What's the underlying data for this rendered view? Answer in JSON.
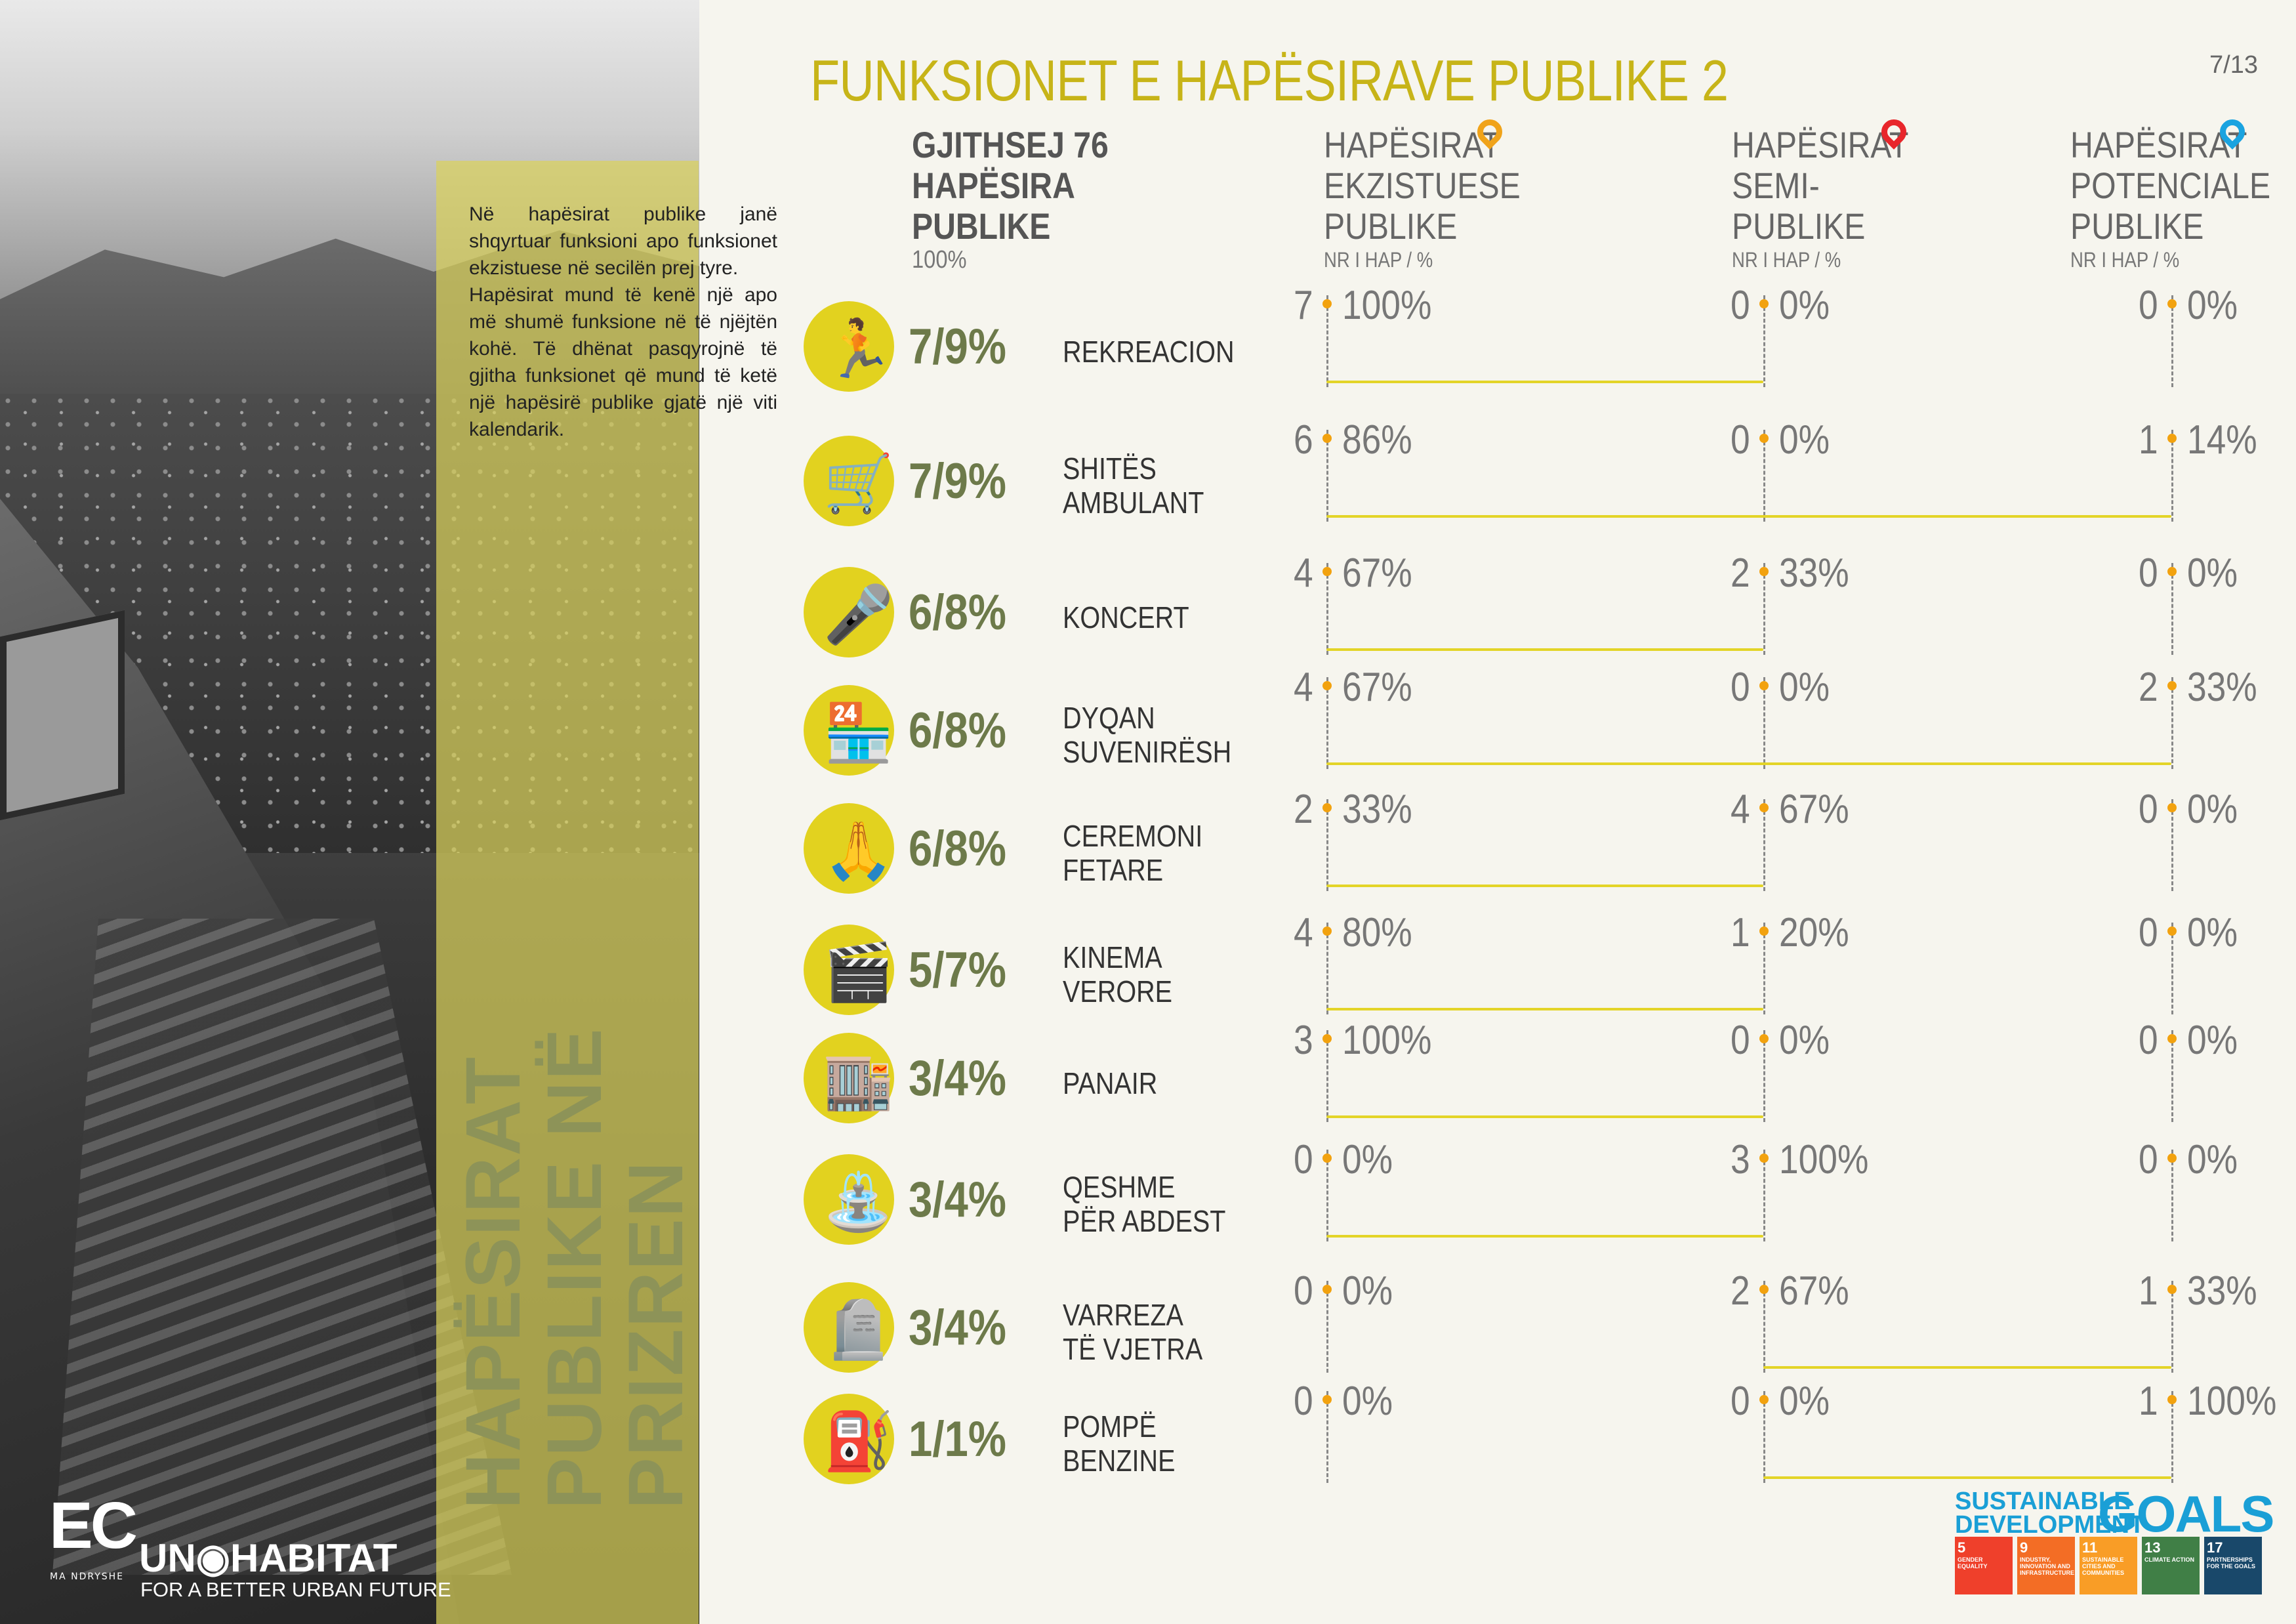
{
  "title": "FUNKSIONET E HAPËSIRAVE PUBLIKE 2",
  "page": "7/13",
  "intro": [
    "Në hapësirat publike janë shqyrtuar funksioni apo funksionet ekzistuese në secilën prej tyre.",
    "Hapësirat mund të kenë një apo më shumë funksione në të njëjtën kohë. Të dhënat pasqyrojnë të gjitha funksionet që mund të ketë një hapësirë publike gjatë një viti kalendarik."
  ],
  "vertical_title": [
    "HAPËSIRAT",
    "PUBLIKE NË",
    "PRIZREN"
  ],
  "logos": {
    "ec": "EC",
    "ec_sub": "MA NDRYSHE",
    "un": "UN◉HABITAT",
    "un_sub": "FOR A BETTER URBAN FUTURE"
  },
  "headers": {
    "total": {
      "lines": [
        "GJITHSEJ 76",
        "HAPËSIRA",
        "PUBLIKE"
      ],
      "sub": "100%"
    },
    "existing": {
      "lines": [
        "HAPËSIRAT",
        "EKZISTUESE",
        "PUBLIKE"
      ],
      "sub": "NR I HAP / %",
      "pin_color": "#f0a31a"
    },
    "semi": {
      "lines": [
        "HAPËSIRAT",
        "SEMI-",
        "PUBLIKE"
      ],
      "sub": "NR I HAP / %",
      "pin_color": "#e8262b"
    },
    "potential": {
      "lines": [
        "HAPËSIRAT",
        "POTENCIALE",
        "PUBLIKE"
      ],
      "sub": "NR I HAP / %",
      "pin_color": "#1aa3e0"
    }
  },
  "rows": [
    {
      "icon": "running-person-icon",
      "glyph": "🏃",
      "total": "7/9%",
      "name": [
        "REKREACION"
      ],
      "existing": [
        "7",
        "100%"
      ],
      "semi": [
        "0",
        "0%"
      ],
      "potential": [
        "0",
        "0%"
      ]
    },
    {
      "icon": "food-cart-icon",
      "glyph": "🛒",
      "total": "7/9%",
      "name": [
        "SHITËS",
        "AMBULANT"
      ],
      "existing": [
        "6",
        "86%"
      ],
      "semi": [
        "0",
        "0%"
      ],
      "potential": [
        "1",
        "14%"
      ]
    },
    {
      "icon": "microphone-icon",
      "glyph": "🎤",
      "total": "6/8%",
      "name": [
        "KONCERT"
      ],
      "existing": [
        "4",
        "67%"
      ],
      "semi": [
        "2",
        "33%"
      ],
      "potential": [
        "0",
        "0%"
      ]
    },
    {
      "icon": "shop-icon",
      "glyph": "🏪",
      "total": "6/8%",
      "name": [
        "DYQAN",
        "SUVENIRËSH"
      ],
      "existing": [
        "4",
        "67%"
      ],
      "semi": [
        "0",
        "0%"
      ],
      "potential": [
        "2",
        "33%"
      ]
    },
    {
      "icon": "praying-hands-icon",
      "glyph": "🙏",
      "total": "6/8%",
      "name": [
        "CEREMONI",
        "FETARE"
      ],
      "existing": [
        "2",
        "33%"
      ],
      "semi": [
        "4",
        "67%"
      ],
      "potential": [
        "0",
        "0%"
      ]
    },
    {
      "icon": "cinema-icon",
      "glyph": "🎬",
      "total": "5/7%",
      "name": [
        "KINEMA",
        "VERORE"
      ],
      "existing": [
        "4",
        "80%"
      ],
      "semi": [
        "1",
        "20%"
      ],
      "potential": [
        "0",
        "0%"
      ]
    },
    {
      "icon": "market-stall-icon",
      "glyph": "🏬",
      "total": "3/4%",
      "name": [
        "PANAIR"
      ],
      "existing": [
        "3",
        "100%"
      ],
      "semi": [
        "0",
        "0%"
      ],
      "potential": [
        "0",
        "0%"
      ]
    },
    {
      "icon": "fountain-icon",
      "glyph": "⛲",
      "total": "3/4%",
      "name": [
        "QESHME",
        "PËR ABDEST"
      ],
      "existing": [
        "0",
        "0%"
      ],
      "semi": [
        "3",
        "100%"
      ],
      "potential": [
        "0",
        "0%"
      ]
    },
    {
      "icon": "tombstone-icon",
      "glyph": "🪦",
      "total": "3/4%",
      "name": [
        "VARREZA",
        "TË VJETRA"
      ],
      "existing": [
        "0",
        "0%"
      ],
      "semi": [
        "2",
        "67%"
      ],
      "potential": [
        "1",
        "33%"
      ]
    },
    {
      "icon": "fuel-pump-icon",
      "glyph": "⛽",
      "total": "1/1%",
      "name": [
        "POMPË",
        "BENZINE"
      ],
      "existing": [
        "0",
        "0%"
      ],
      "semi": [
        "0",
        "0%"
      ],
      "potential": [
        "1",
        "100%"
      ]
    }
  ],
  "sdg": {
    "title": [
      "SUSTAINABLE",
      "DEVELOPMENT"
    ],
    "goals_word": "GOALS",
    "tiles": [
      {
        "num": "5",
        "label": "GENDER EQUALITY",
        "color": "#ef402b"
      },
      {
        "num": "9",
        "label": "INDUSTRY, INNOVATION AND INFRASTRUCTURE",
        "color": "#f36d25"
      },
      {
        "num": "11",
        "label": "SUSTAINABLE CITIES AND COMMUNITIES",
        "color": "#f99d26"
      },
      {
        "num": "13",
        "label": "CLIMATE ACTION",
        "color": "#407f46"
      },
      {
        "num": "17",
        "label": "PARTNERSHIPS FOR THE GOALS",
        "color": "#19486a"
      }
    ]
  }
}
